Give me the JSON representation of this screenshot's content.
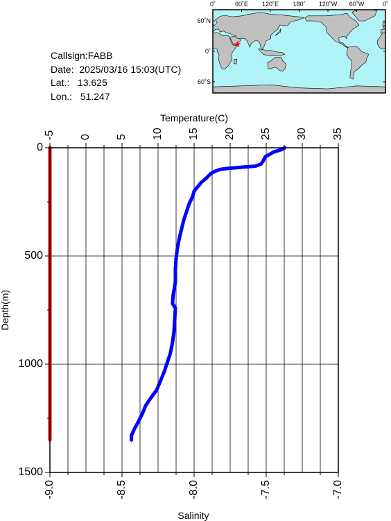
{
  "station": {
    "callsign_line": "Callsign:FABB",
    "date_line": "Date:  2025/03/16 15:03(UTC)",
    "lat_line": "Lat.:   13.625",
    "lon_line": "Lon.:   51.247"
  },
  "map": {
    "lon_labels": [
      "0˚",
      "60˚E",
      "120˚E",
      "180˚",
      "120˚W",
      "60˚W",
      "0˚"
    ],
    "lat_labels": [
      "60˚N",
      "0˚",
      "60˚S"
    ],
    "marker_lat": 13.625,
    "marker_lon": 51.247,
    "ocean_color": "#b0f4f8",
    "land_color": "#c0c0c0",
    "marker_color": "#ff0000"
  },
  "chart_data": {
    "type": "line",
    "ylabel": "Depth(m)",
    "ylim": [
      0,
      1500
    ],
    "y_ticks": [
      0,
      500,
      1000,
      1500
    ],
    "y_reversed": true,
    "top_axis": {
      "label": "Temperature(C)",
      "range": [
        -5,
        35
      ],
      "ticks": [
        -5,
        0,
        5,
        10,
        15,
        20,
        25,
        30,
        35
      ]
    },
    "bottom_axis": {
      "label": "Salinity",
      "range": [
        -9.0,
        -7.0
      ],
      "ticks": [
        -9.0,
        -8.5,
        -8.0,
        -7.5,
        -7.0
      ],
      "tick_labels": [
        "-9.0",
        "-8.5",
        "-8.0",
        "-7.5",
        "-7.0"
      ]
    },
    "grid": true,
    "series": [
      {
        "axis": "temperature",
        "color": "#0000ff",
        "points": [
          [
            27.6,
            0
          ],
          [
            27.0,
            10
          ],
          [
            26.0,
            20
          ],
          [
            25.5,
            30
          ],
          [
            24.9,
            40
          ],
          [
            24.6,
            60
          ],
          [
            24.3,
            75
          ],
          [
            23.5,
            85
          ],
          [
            21.5,
            90
          ],
          [
            19.8,
            95
          ],
          [
            18.6,
            100
          ],
          [
            17.8,
            110
          ],
          [
            17.3,
            120
          ],
          [
            16.7,
            140
          ],
          [
            16.0,
            160
          ],
          [
            15.5,
            180
          ],
          [
            15.0,
            200
          ],
          [
            14.8,
            225
          ],
          [
            14.3,
            260
          ],
          [
            14.0,
            290
          ],
          [
            13.6,
            330
          ],
          [
            13.3,
            370
          ],
          [
            13.0,
            410
          ],
          [
            12.7,
            460
          ],
          [
            12.5,
            510
          ],
          [
            12.4,
            560
          ],
          [
            12.4,
            620
          ],
          [
            12.1,
            680
          ],
          [
            12.0,
            720
          ],
          [
            12.4,
            740
          ],
          [
            12.3,
            800
          ],
          [
            12.2,
            850
          ],
          [
            12.0,
            900
          ],
          [
            11.7,
            950
          ],
          [
            11.3,
            990
          ],
          [
            10.9,
            1030
          ],
          [
            10.3,
            1080
          ],
          [
            9.8,
            1120
          ],
          [
            8.9,
            1160
          ],
          [
            8.3,
            1190
          ],
          [
            7.8,
            1230
          ],
          [
            7.2,
            1270
          ],
          [
            6.7,
            1300
          ],
          [
            6.3,
            1330
          ],
          [
            6.3,
            1350
          ]
        ]
      },
      {
        "axis": "salinity",
        "color": "#ff0000",
        "points": [
          [
            -9.0,
            0
          ],
          [
            -9.0,
            1350
          ]
        ]
      }
    ]
  }
}
